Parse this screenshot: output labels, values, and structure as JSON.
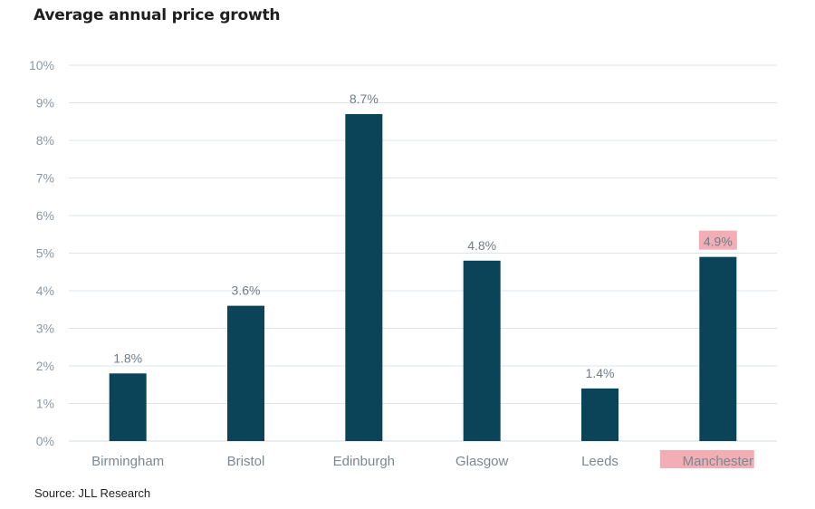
{
  "title": "Average annual price growth",
  "source": "Source: JLL Research",
  "chart_data": {
    "type": "bar",
    "title": "Average annual price growth",
    "categories": [
      "Birmingham",
      "Bristol",
      "Edinburgh",
      "Glasgow",
      "Leeds",
      "Manchester"
    ],
    "values": [
      1.8,
      3.6,
      8.7,
      4.8,
      1.4,
      4.9
    ],
    "data_labels": [
      "1.8%",
      "3.6%",
      "8.7%",
      "4.8%",
      "1.4%",
      "4.9%"
    ],
    "ylim": [
      0,
      10
    ],
    "y_ticks": [
      "0%",
      "1%",
      "2%",
      "3%",
      "4%",
      "5%",
      "6%",
      "7%",
      "8%",
      "9%",
      "10%"
    ],
    "xlabel": "",
    "ylabel": "",
    "grid": true,
    "legend": "none",
    "bar_color": "#0b4459",
    "highlight_color": "#f2aeb4",
    "highlighted_category": "Manchester"
  }
}
